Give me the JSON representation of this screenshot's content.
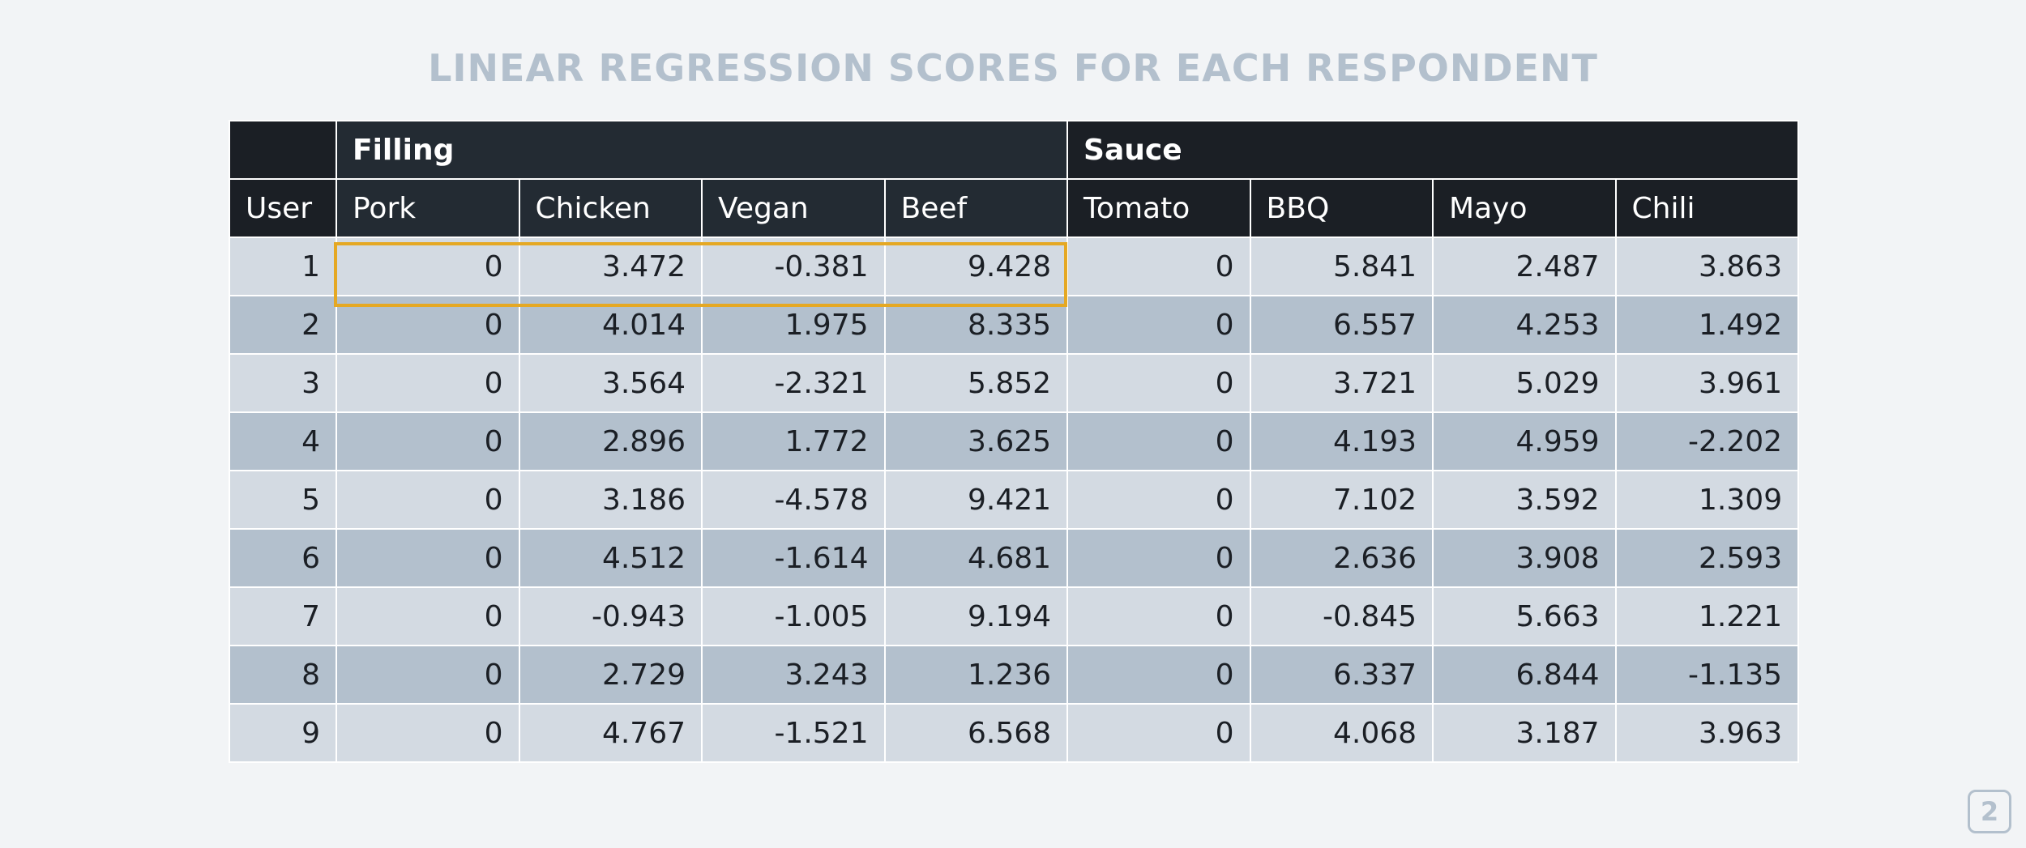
{
  "title": "LINEAR REGRESSION SCORES FOR EACH RESPONDENT",
  "groups": {
    "filling": "Filling",
    "sauce": "Sauce"
  },
  "headers": [
    "User",
    "Pork",
    "Chicken",
    "Vegan",
    "Beef",
    "Tomato",
    "BBQ",
    "Mayo",
    "Chili"
  ],
  "rows": [
    [
      "1",
      "0",
      "3.472",
      "-0.381",
      "9.428",
      "0",
      "5.841",
      "2.487",
      "3.863"
    ],
    [
      "2",
      "0",
      "4.014",
      "1.975",
      "8.335",
      "0",
      "6.557",
      "4.253",
      "1.492"
    ],
    [
      "3",
      "0",
      "3.564",
      "-2.321",
      "5.852",
      "0",
      "3.721",
      "5.029",
      "3.961"
    ],
    [
      "4",
      "0",
      "2.896",
      "1.772",
      "3.625",
      "0",
      "4.193",
      "4.959",
      "-2.202"
    ],
    [
      "5",
      "0",
      "3.186",
      "-4.578",
      "9.421",
      "0",
      "7.102",
      "3.592",
      "1.309"
    ],
    [
      "6",
      "0",
      "4.512",
      "-1.614",
      "4.681",
      "0",
      "2.636",
      "3.908",
      "2.593"
    ],
    [
      "7",
      "0",
      "-0.943",
      "-1.005",
      "9.194",
      "0",
      "-0.845",
      "5.663",
      "1.221"
    ],
    [
      "8",
      "0",
      "2.729",
      "3.243",
      "1.236",
      "0",
      "6.337",
      "6.844",
      "-1.135"
    ],
    [
      "9",
      "0",
      "4.767",
      "-1.521",
      "6.568",
      "0",
      "4.068",
      "3.187",
      "3.963"
    ]
  ],
  "highlight_color": "#e5a823",
  "page_number": "2"
}
